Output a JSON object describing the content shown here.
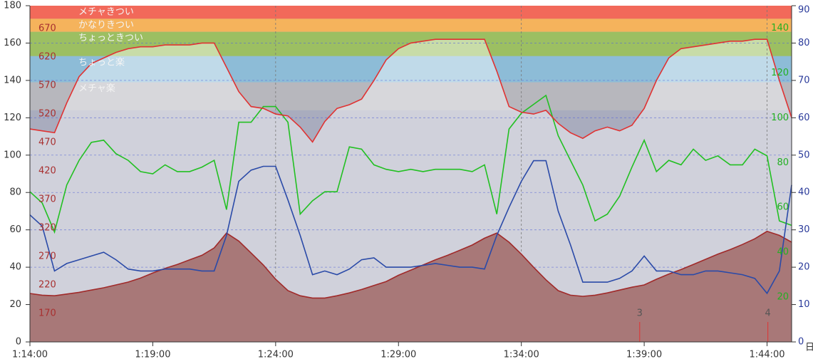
{
  "chart_data": {
    "type": "line",
    "x": [
      "1:14:00",
      "1:14:30",
      "1:15:00",
      "1:15:30",
      "1:16:00",
      "1:16:30",
      "1:17:00",
      "1:17:30",
      "1:18:00",
      "1:18:30",
      "1:19:00",
      "1:19:30",
      "1:20:00",
      "1:20:30",
      "1:21:00",
      "1:21:30",
      "1:22:00",
      "1:22:30",
      "1:23:00",
      "1:23:30",
      "1:24:00",
      "1:24:30",
      "1:25:00",
      "1:25:30",
      "1:26:00",
      "1:26:30",
      "1:27:00",
      "1:27:30",
      "1:28:00",
      "1:28:30",
      "1:29:00",
      "1:29:30",
      "1:30:00",
      "1:30:30",
      "1:31:00",
      "1:31:30",
      "1:32:00",
      "1:32:30",
      "1:33:00",
      "1:33:30",
      "1:34:00",
      "1:34:30",
      "1:35:00",
      "1:35:30",
      "1:36:00",
      "1:36:30",
      "1:37:00",
      "1:37:30",
      "1:38:00",
      "1:38:30",
      "1:39:00",
      "1:39:30",
      "1:40:00",
      "1:40:30",
      "1:41:00",
      "1:41:30",
      "1:42:00",
      "1:42:30",
      "1:43:00",
      "1:43:30",
      "1:44:00",
      "1:44:30",
      "1:45:00"
    ],
    "xlim": [
      "1:14:00",
      "1:45:00"
    ],
    "xticks": [
      "1:14:00",
      "1:19:00",
      "1:24:00",
      "1:29:00",
      "1:34:00",
      "1:39:00",
      "1:44:00"
    ],
    "x_grid": [
      "1:24:00",
      "1:34:00",
      "1:44:00"
    ],
    "ylim": [
      0,
      180
    ],
    "yticks": [
      0,
      20,
      40,
      60,
      80,
      100,
      120,
      140,
      160,
      180
    ],
    "grid": true,
    "y2lim": [
      0,
      90
    ],
    "y2ticks": [
      0,
      10,
      20,
      30,
      40,
      50,
      60,
      70,
      80,
      90
    ],
    "y2_color": "#2a3a9a",
    "y3lim": [
      0,
      150
    ],
    "y3ticks": [
      20,
      40,
      60,
      80,
      100,
      120,
      140
    ],
    "y3_color": "#22b022",
    "y4lim": [
      120,
      710
    ],
    "y4ticks": [
      170,
      220,
      270,
      320,
      370,
      420,
      470,
      520,
      570,
      620,
      670
    ],
    "y4_color": "#a83030",
    "corner_label": "日",
    "zones": [
      {
        "label": "メチャきつい",
        "from": 173,
        "to": 180,
        "color": "#f2695a"
      },
      {
        "label": "かなりきつい",
        "from": 166,
        "to": 173,
        "color": "#f5b35c"
      },
      {
        "label": "ちょっときつい",
        "from": 153,
        "to": 166,
        "color": "#9cbf62"
      },
      {
        "label": "ちょっと楽",
        "from": 139,
        "to": 153,
        "color": "#8dbcd7"
      },
      {
        "label": "メチャ楽",
        "from": 124,
        "to": 139,
        "color": "#b7b7bd"
      }
    ],
    "background": "#a9acbe",
    "laps": [
      {
        "label": "3",
        "x": "1:38:49"
      },
      {
        "label": "4",
        "x": "1:44:02"
      }
    ],
    "series": [
      {
        "axis": "y4",
        "area": true,
        "color": "#a02a2a",
        "fill": "#a87878",
        "values": [
          205,
          202,
          201,
          204,
          207,
          211,
          215,
          220,
          225,
          232,
          241,
          249,
          256,
          264,
          272,
          285,
          311,
          297,
          276,
          255,
          230,
          210,
          201,
          197,
          197,
          201,
          206,
          212,
          219,
          226,
          237,
          246,
          255,
          264,
          272,
          281,
          290,
          302,
          311,
          295,
          274,
          251,
          229,
          210,
          202,
          200,
          202,
          206,
          211,
          216,
          220,
          230,
          239,
          247,
          256,
          265,
          274,
          282,
          291,
          301,
          314,
          307,
          295
        ]
      },
      {
        "axis": "y3",
        "color": "#22c022",
        "values": [
          67,
          62,
          49,
          70,
          81,
          89,
          90,
          84,
          81,
          76,
          75,
          79,
          76,
          76,
          78,
          81,
          59,
          98,
          98,
          105,
          105,
          98,
          57,
          63,
          67,
          67,
          87,
          86,
          79,
          77,
          76,
          77,
          76,
          77,
          77,
          77,
          76,
          79,
          57,
          95,
          102,
          106,
          110,
          92,
          81,
          70,
          54,
          57,
          65,
          78,
          90,
          76,
          81,
          79,
          86,
          81,
          83,
          79,
          79,
          86,
          83,
          54,
          52
        ]
      },
      {
        "axis": "y2",
        "color": "#2a4aa8",
        "values": [
          34,
          31,
          19,
          21,
          22,
          23,
          24,
          22,
          19.5,
          19,
          19,
          19.5,
          19.5,
          19.5,
          19,
          19,
          28.5,
          43,
          46,
          47,
          47,
          38,
          28.5,
          18,
          19,
          18,
          19.5,
          22,
          22.5,
          20,
          20,
          20,
          20.5,
          21,
          20.5,
          20,
          20,
          19.5,
          28.5,
          36,
          43,
          48.5,
          48.5,
          35,
          26,
          16,
          16,
          16,
          17,
          19,
          23,
          19,
          19,
          18,
          18,
          19,
          19,
          18.5,
          18,
          17,
          13,
          19,
          42
        ]
      },
      {
        "axis": "y",
        "color": "#e03232",
        "under_fill": "rgba(255,255,255,0.45)",
        "values": [
          114,
          113,
          112,
          128,
          142,
          149,
          152,
          155,
          157,
          158,
          158,
          159,
          159,
          159,
          160,
          160,
          147,
          134,
          126,
          125,
          122,
          121,
          115,
          107,
          118,
          125,
          127,
          130,
          140,
          151,
          157,
          160,
          161,
          162,
          162,
          162,
          162,
          162,
          145,
          126,
          123,
          122,
          124,
          117,
          112,
          109,
          113,
          115,
          113,
          116,
          125,
          140,
          152,
          157,
          158,
          159,
          160,
          161,
          161,
          162,
          162,
          140,
          120
        ]
      }
    ]
  }
}
